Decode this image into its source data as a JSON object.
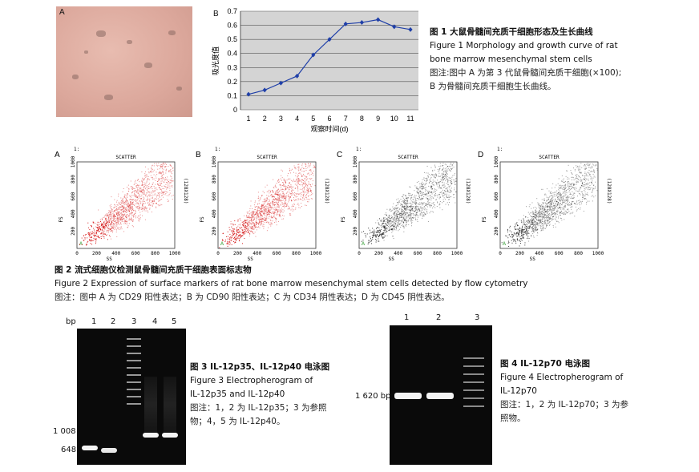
{
  "fig1": {
    "panel_a": "A",
    "panel_b": "B",
    "title_zh": "图 1   大鼠骨髓间充质干细胞形态及生长曲线",
    "title_en_1": "Figure 1    Morphology and growth curve of rat",
    "title_en_2": "bone marrow mesenchymal stem cells",
    "note_1": "图注:图中 A 为第 3 代鼠骨髓间充质干细胞(×100);",
    "note_2": "B 为骨髓间充质干细胞生长曲线。"
  },
  "chart_data": {
    "type": "line",
    "x": [
      1,
      2,
      3,
      4,
      5,
      6,
      7,
      8,
      9,
      10,
      11
    ],
    "series": [
      {
        "values": [
          0.11,
          0.14,
          0.19,
          0.24,
          0.39,
          0.5,
          0.61,
          0.62,
          0.64,
          0.59,
          0.57
        ]
      }
    ],
    "xlabel": "观察时间(d)",
    "ylabel": "吸光度值",
    "ylim": [
      0,
      0.7
    ],
    "yticks": [
      "0",
      "0.1",
      "0.2",
      "0.3",
      "0.4",
      "0.5",
      "0.6",
      "0.7"
    ],
    "xticks": [
      "1",
      "2",
      "3",
      "4",
      "5",
      "6",
      "7",
      "8",
      "9",
      "10",
      "11"
    ],
    "grid": true,
    "color": "#1f3fa8"
  },
  "fig2": {
    "panels": [
      {
        "letter": "A",
        "num": "1:",
        "scatter": "SCATTER",
        "ylabel": "FS",
        "xlabel": "SS",
        "right": "(128X128)",
        "color": "#d10000"
      },
      {
        "letter": "B",
        "num": "1:",
        "scatter": "SCATTER",
        "ylabel": "FS",
        "xlabel": "SS",
        "right": "(128X128)",
        "color": "#d10000"
      },
      {
        "letter": "C",
        "num": "1:",
        "scatter": "SCATTER",
        "ylabel": "FS",
        "xlabel": "SS",
        "right": "(128X128)",
        "color": "#1a1a1a"
      },
      {
        "letter": "D",
        "num": "1:",
        "scatter": "SCATTER",
        "ylabel": "FS",
        "xlabel": "SS",
        "right": "(128X128)",
        "color": "#222222"
      }
    ],
    "yticks": [
      "200",
      "400",
      "600",
      "800",
      "1000"
    ],
    "xticks": [
      "0",
      "200",
      "400",
      "600",
      "800",
      "1000"
    ],
    "gate": "A",
    "title_zh": "图 2   流式细胞仪检测鼠骨髓间充质干细胞表面标志物",
    "title_en": "Figure 2    Expression of surface markers of rat bone marrow mesenchymal stem cells detected by flow cytometry",
    "note": "图注：图中 A 为  CD29 阳性表达；B 为 CD90 阳性表达；C 为 CD34 阴性表达；D 为 CD45 阴性表达。"
  },
  "fig3": {
    "bp": "bp",
    "lanes": [
      "1",
      "2",
      "3",
      "4",
      "5"
    ],
    "marker_1008": "1 008",
    "marker_648": "648",
    "title_zh": "图 3   IL-12p35、IL-12p40 电泳图",
    "title_en_1": "Figure 3    Electropherogram of",
    "title_en_2": "IL-12p35 and IL-12p40",
    "note_1": "图注：1，2 为 IL-12p35；3 为参照",
    "note_2": "物；4，5 为 IL-12p40。"
  },
  "fig4": {
    "lanes": [
      "1",
      "2",
      "3"
    ],
    "marker": "1 620 bp",
    "title_zh": "图 4   IL-12p70 电泳图",
    "title_en_1": "Figure 4    Electropherogram of",
    "title_en_2": "IL-12p70",
    "note_1": "图注：1，2 为 IL-12p70；3 为参",
    "note_2": "照物。"
  }
}
